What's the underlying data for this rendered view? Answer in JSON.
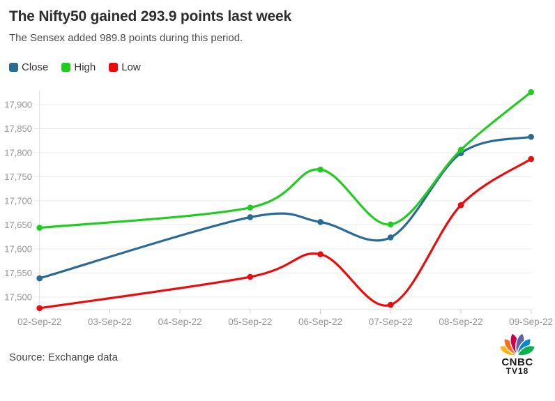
{
  "header": {
    "title": "The Nifty50 gained 293.9 points last week",
    "subtitle": "The Sensex added 989.8 points during this period."
  },
  "legend": {
    "items": [
      {
        "label": "Close",
        "color": "#2A6A96"
      },
      {
        "label": "High",
        "color": "#21CC21"
      },
      {
        "label": "Low",
        "color": "#EB0B0B"
      }
    ]
  },
  "chart_data": {
    "type": "line",
    "title": "The Nifty50 gained 293.9 points last week",
    "subtitle": "The Sensex added 989.8 points during this period.",
    "x_labels": [
      "02-Sep-22",
      "03-Sep-22",
      "04-Sep-22",
      "05-Sep-22",
      "06-Sep-22",
      "07-Sep-22",
      "08-Sep-22",
      "09-Sep-22"
    ],
    "note": "03-Sep-22 and 04-Sep-22 (weekend) have no data points; curves interpolate smoothly across them",
    "series": [
      {
        "name": "Close",
        "color": "#2A6A96",
        "x_day_index": [
          0,
          3,
          4,
          5,
          6,
          7
        ],
        "values": [
          17539,
          17666,
          17656,
          17624,
          17799,
          17833
        ]
      },
      {
        "name": "High",
        "color": "#21CC21",
        "x_day_index": [
          0,
          3,
          4,
          5,
          6,
          7
        ],
        "values": [
          17644,
          17686,
          17765,
          17651,
          17806,
          17926
        ]
      },
      {
        "name": "Low",
        "color": "#EB0B0B",
        "x_day_index": [
          0,
          3,
          4,
          5,
          6,
          7
        ],
        "values": [
          17477,
          17542,
          17589,
          17484,
          17691,
          17787
        ]
      }
    ],
    "y_ticks": {
      "values": [
        17500,
        17550,
        17600,
        17650,
        17700,
        17750,
        17800,
        17850,
        17900
      ],
      "labels": [
        "17,500",
        "17,550",
        "17,600",
        "17,650",
        "17,700",
        "17,750",
        "17,800",
        "17,850",
        "17,900"
      ]
    },
    "ylim": [
      17475,
      17935
    ],
    "grid": "horizontal",
    "legend_position": "top-left",
    "axis_label_color": "#949494",
    "grid_color": "#e9e9e9"
  },
  "footer": {
    "source": "Source: Exchange data"
  },
  "logo": {
    "line1": "CNBC",
    "line2": "TV18",
    "petal_colors": [
      "#FCB711",
      "#F37021",
      "#CC004C",
      "#6460AA",
      "#0089D0",
      "#0DB14B"
    ],
    "text_color": "#1a1a1a"
  }
}
